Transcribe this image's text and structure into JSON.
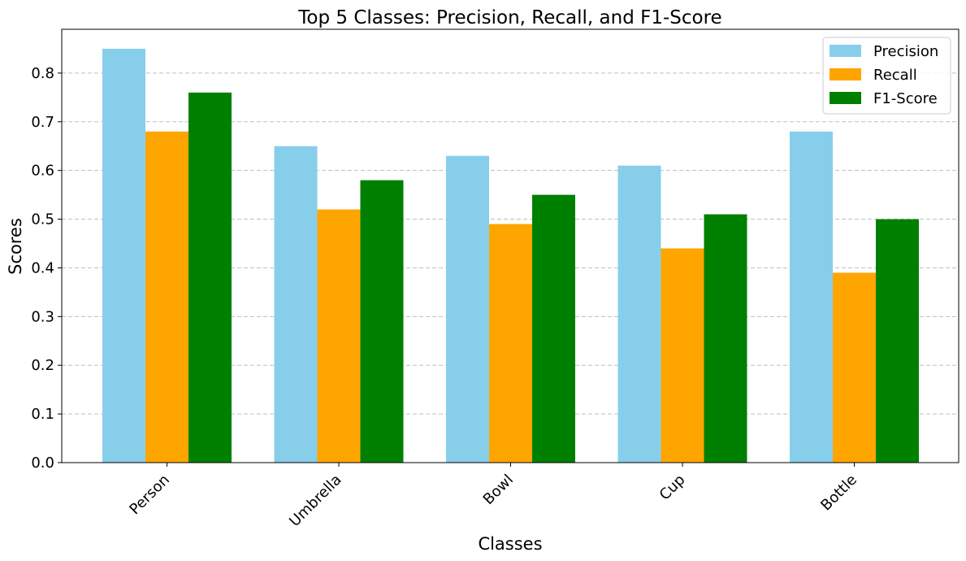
{
  "chart_data": {
    "type": "bar",
    "title": "Top 5 Classes: Precision, Recall, and F1-Score",
    "xlabel": "Classes",
    "ylabel": "Scores",
    "categories": [
      "Person",
      "Umbrella",
      "Bowl",
      "Cup",
      "Bottle"
    ],
    "series": [
      {
        "name": "Precision",
        "color": "#87ceeb",
        "values": [
          0.85,
          0.65,
          0.63,
          0.61,
          0.68
        ]
      },
      {
        "name": "Recall",
        "color": "#ffa500",
        "values": [
          0.68,
          0.52,
          0.49,
          0.44,
          0.39
        ]
      },
      {
        "name": "F1-Score",
        "color": "#008000",
        "values": [
          0.76,
          0.58,
          0.55,
          0.51,
          0.5
        ]
      }
    ],
    "ylim": [
      0,
      0.89
    ],
    "yticks": [
      "0.0",
      "0.1",
      "0.2",
      "0.3",
      "0.4",
      "0.5",
      "0.6",
      "0.7",
      "0.8"
    ],
    "grid": "y-axis dashed",
    "legend_position": "top-right"
  }
}
